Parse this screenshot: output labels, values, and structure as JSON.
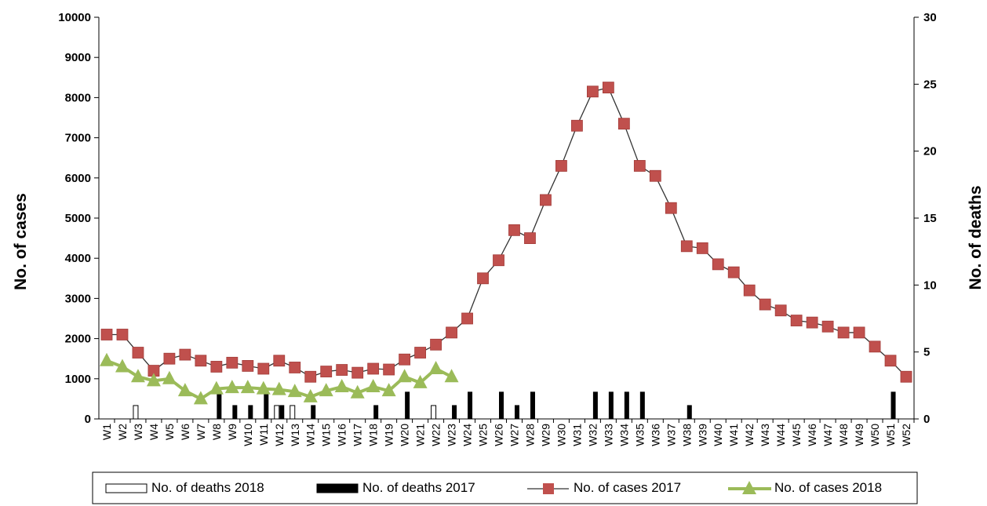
{
  "colors": {
    "cases_2017": "#c0504d",
    "cases_2018": "#9bbb59",
    "deaths_2017": "#000000",
    "deaths_2018": "#ffffff",
    "line": "#333333"
  },
  "chart_data": {
    "type": "bar+line",
    "title": "",
    "ylabel": "No. of cases",
    "y2label": "No. of deaths",
    "xlabel": "",
    "ylim": [
      0,
      10000
    ],
    "y2lim": [
      0,
      30
    ],
    "yticks": [
      "0",
      "1000",
      "2000",
      "3000",
      "4000",
      "5000",
      "6000",
      "7000",
      "8000",
      "9000",
      "10000"
    ],
    "y2ticks": [
      "0",
      "5",
      "10",
      "15",
      "20",
      "25",
      "30"
    ],
    "categories": [
      "W1",
      "W2",
      "W3",
      "W4",
      "W5",
      "W6",
      "W7",
      "W8",
      "W9",
      "W10",
      "W11",
      "W12",
      "W13",
      "W14",
      "W15",
      "W16",
      "W17",
      "W18",
      "W19",
      "W20",
      "W21",
      "W22",
      "W23",
      "W24",
      "W25",
      "W26",
      "W27",
      "W28",
      "W29",
      "W30",
      "W31",
      "W32",
      "W33",
      "W34",
      "W35",
      "W36",
      "W37",
      "W38",
      "W39",
      "W40",
      "W41",
      "W42",
      "W43",
      "W44",
      "W45",
      "W46",
      "W47",
      "W48",
      "W49",
      "W50",
      "W51",
      "W52"
    ],
    "legend_position": "bottom",
    "series": [
      {
        "name": "No. of deaths 2018",
        "kind": "bar",
        "axis": "right",
        "values": [
          0,
          0,
          1,
          0,
          0,
          0,
          0,
          0,
          0,
          0,
          0,
          1,
          1,
          0,
          0,
          0,
          0,
          0,
          0,
          0,
          0,
          1,
          0,
          null,
          null,
          null,
          null,
          null,
          null,
          null,
          null,
          null,
          null,
          null,
          null,
          null,
          null,
          null,
          null,
          null,
          null,
          null,
          null,
          null,
          null,
          null,
          null,
          null,
          null,
          null,
          null,
          null
        ]
      },
      {
        "name": "No. of deaths 2017",
        "kind": "bar",
        "axis": "right",
        "values": [
          0,
          0,
          0,
          0,
          0,
          0,
          0,
          2,
          1,
          1,
          2,
          1,
          0,
          1,
          0,
          0,
          0,
          1,
          0,
          2,
          0,
          0,
          1,
          2,
          0,
          2,
          1,
          2,
          0,
          0,
          0,
          2,
          2,
          2,
          2,
          0,
          0,
          1,
          0,
          0,
          0,
          0,
          0,
          0,
          0,
          0,
          0,
          0,
          0,
          0,
          2,
          0
        ]
      },
      {
        "name": "No. of cases 2017",
        "kind": "line",
        "marker": "square",
        "axis": "left",
        "values": [
          2100,
          2100,
          1650,
          1200,
          1500,
          1600,
          1450,
          1300,
          1400,
          1320,
          1250,
          1450,
          1280,
          1050,
          1180,
          1220,
          1150,
          1250,
          1230,
          1480,
          1650,
          1850,
          2150,
          2500,
          3500,
          3950,
          4700,
          4500,
          5450,
          6300,
          7300,
          8150,
          8250,
          7350,
          6300,
          6050,
          5250,
          4300,
          4250,
          3850,
          3650,
          3200,
          2850,
          2700,
          2450,
          2400,
          2300,
          2150,
          2150,
          1800,
          1450,
          1050
        ]
      },
      {
        "name": "No. of cases 2018",
        "kind": "line",
        "marker": "triangle",
        "axis": "left",
        "values": [
          1450,
          1300,
          1050,
          950,
          1000,
          700,
          500,
          750,
          780,
          780,
          750,
          730,
          680,
          550,
          700,
          800,
          650,
          800,
          700,
          1050,
          900,
          1250,
          1050,
          null,
          null,
          null,
          null,
          null,
          null,
          null,
          null,
          null,
          null,
          null,
          null,
          null,
          null,
          null,
          null,
          null,
          null,
          null,
          null,
          null,
          null,
          null,
          null,
          null,
          null,
          null,
          null,
          null
        ]
      }
    ]
  }
}
